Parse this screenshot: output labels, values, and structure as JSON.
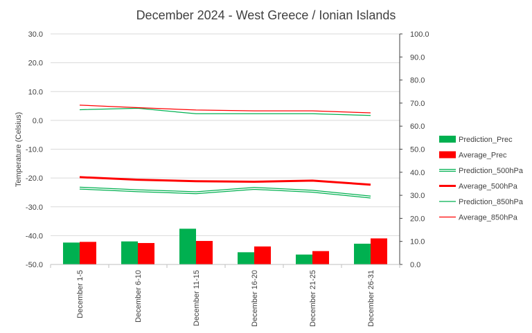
{
  "chart_data": {
    "type": "bar",
    "title": "December 2024 - West Greece / Ionian Islands",
    "categories": [
      "December 1-5",
      "December 6-10",
      "December 11-15",
      "December 16-20",
      "December 21-25",
      "December 26-31"
    ],
    "y_left": {
      "label": "Temperature (Celsius)",
      "range": [
        -50,
        30
      ],
      "ticks": [
        "30.0",
        "20.0",
        "10.0",
        "0.0",
        "-10.0",
        "-20.0",
        "-30.0",
        "-40.0",
        "-50.0"
      ]
    },
    "y_right": {
      "range": [
        0,
        100
      ],
      "ticks": [
        "100.0",
        "90.0",
        "80.0",
        "70.0",
        "60.0",
        "50.0",
        "40.0",
        "30.0",
        "20.0",
        "10.0",
        "0.0"
      ]
    },
    "grid": true,
    "legend_position": "right",
    "bar_series": [
      {
        "name": "Prediction_Prec",
        "color": "#00b050",
        "axis": "right",
        "values": [
          9.5,
          10.0,
          15.5,
          5.3,
          4.3,
          9.0
        ]
      },
      {
        "name": "Average_Prec",
        "color": "#ff0000",
        "axis": "right",
        "values": [
          9.8,
          9.3,
          10.2,
          7.8,
          5.8,
          11.3
        ]
      }
    ],
    "line_series": [
      {
        "name": "Prediction_500hPa",
        "color": "#00b050",
        "style": "double",
        "axis": "left",
        "values": [
          -23.5,
          -24.4,
          -25.1,
          -23.6,
          -24.6,
          -26.6
        ]
      },
      {
        "name": "Average_500hPa",
        "color": "#ff0000",
        "style": "thick",
        "axis": "left",
        "values": [
          -19.7,
          -20.6,
          -21.1,
          -21.3,
          -20.9,
          -22.3
        ]
      },
      {
        "name": "Prediction_850hPa",
        "color": "#00b050",
        "style": "thin",
        "axis": "left",
        "values": [
          3.7,
          4.2,
          2.3,
          2.3,
          2.3,
          1.7
        ]
      },
      {
        "name": "Average_850hPa",
        "color": "#ff0000",
        "style": "thin",
        "axis": "left",
        "values": [
          5.3,
          4.4,
          3.6,
          3.3,
          3.3,
          2.6
        ]
      }
    ]
  }
}
